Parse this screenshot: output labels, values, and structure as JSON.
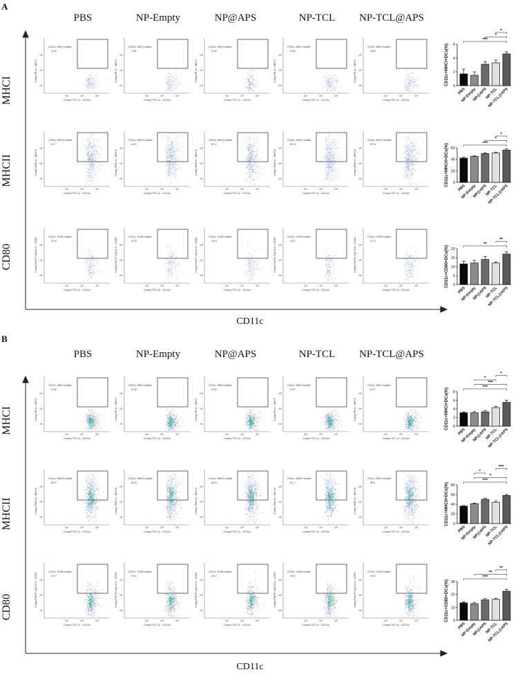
{
  "groups": [
    "PBS",
    "NP-Empty",
    "NP@APS",
    "NP-TCL",
    "NP-TCL@APS"
  ],
  "markers": [
    "MHCI",
    "MHCII",
    "CD80"
  ],
  "x_axis_title": "CD11c",
  "facs_labels": {
    "x_axis": "Comp-FITC-A :: CD11c",
    "y_axis": [
      "Comp-PE-A :: MHCI",
      "Comp-V500-A :: MHCII",
      "Comp-PerCP-Cy5-5-A :: CD80"
    ],
    "gate": [
      "CD11c, MHCI subset",
      "CD11c, MHCII subset",
      "CD11c, CD80 subset"
    ],
    "tick_labels": [
      "10³",
      "10⁴",
      "10⁵"
    ]
  },
  "panels": [
    {
      "letter": "A",
      "gate_values": [
        [
          "2.03",
          "1.82",
          "3.44",
          "3.62",
          "4.90"
        ],
        [
          "41.7",
          "44.5",
          "50.1",
          "52.5",
          "57.6"
        ],
        [
          "12.4",
          "12.8",
          "15.4",
          "14.2",
          "17.4"
        ]
      ],
      "colors": {
        "scatter": "#5b7bd6",
        "scatter_dense": "#2aa66a"
      }
    },
    {
      "letter": "B",
      "gate_values": [
        [
          "3.06",
          "3.09",
          "3.04",
          "4.07",
          "5.47"
        ],
        [
          "36.2",
          "42.8",
          "43.4",
          "51.7",
          "59.1"
        ],
        [
          "13.7",
          "13.1",
          "15.1",
          "15.4",
          "20.5"
        ]
      ],
      "colors": {
        "scatter": "#4d6fd0",
        "scatter_dense": "#21b36b"
      }
    }
  ],
  "chart_data": [
    {
      "type": "bar",
      "panel": "A",
      "ylabel": "CD11c+MHCI+DCs(%)",
      "categories": [
        "PBS",
        "NP-Empty",
        "NP@APS",
        "NP-TCL",
        "NP-TCL@APS"
      ],
      "values": [
        1.7,
        1.5,
        3.1,
        3.3,
        4.6
      ],
      "errors": [
        0.7,
        0.5,
        0.4,
        0.4,
        0.3
      ],
      "ylim": [
        0,
        6
      ],
      "yticks": [
        0,
        2,
        4,
        6
      ],
      "significance": [
        {
          "pair": [
            0,
            4
          ],
          "label": "***"
        },
        {
          "pair": [
            2,
            4
          ],
          "label": "*"
        },
        {
          "pair": [
            3,
            4
          ],
          "label": "*"
        }
      ]
    },
    {
      "type": "bar",
      "panel": "A",
      "ylabel": "CD11c+MHCII+DCs(%)",
      "categories": [
        "PBS",
        "NP-Empty",
        "NP@APS",
        "NP-TCL",
        "NP-TCL@APS"
      ],
      "values": [
        42,
        45,
        50,
        51,
        56
      ],
      "errors": [
        1.5,
        1.5,
        1.5,
        1.5,
        2
      ],
      "ylim": [
        0,
        60
      ],
      "yticks": [
        0,
        20,
        40,
        60
      ],
      "significance": [
        {
          "pair": [
            0,
            4
          ],
          "label": "***"
        },
        {
          "pair": [
            2,
            4
          ],
          "label": "*"
        },
        {
          "pair": [
            3,
            4
          ],
          "label": "*"
        }
      ]
    },
    {
      "type": "bar",
      "panel": "A",
      "ylabel": "CD11c+CD80+DCs(%)",
      "categories": [
        "PBS",
        "NP-Empty",
        "NP@APS",
        "NP-TCL",
        "NP-TCL@APS"
      ],
      "values": [
        11.5,
        12,
        14,
        12,
        17
      ],
      "errors": [
        1.5,
        1.5,
        1.5,
        0.6,
        1.2
      ],
      "ylim": [
        0,
        20
      ],
      "yticks": [
        0,
        5,
        10,
        15,
        20
      ],
      "significance": [
        {
          "pair": [
            0,
            4
          ],
          "label": "**"
        },
        {
          "pair": [
            3,
            4
          ],
          "label": "**"
        }
      ]
    },
    {
      "type": "bar",
      "panel": "B",
      "ylabel": "CD11c+MHCI+DCs(%)",
      "categories": [
        "PBS",
        "NP-Empty",
        "NP@APS",
        "NP-TCL",
        "NP-TCL@APS"
      ],
      "values": [
        3.1,
        3.1,
        3.3,
        4.3,
        5.5
      ],
      "errors": [
        0.2,
        0.3,
        0.3,
        0.3,
        0.5
      ],
      "ylim": [
        0,
        8
      ],
      "yticks": [
        0,
        2,
        4,
        6,
        8
      ],
      "significance": [
        {
          "pair": [
            0,
            4
          ],
          "label": "***"
        },
        {
          "pair": [
            1,
            4
          ],
          "label": "***"
        },
        {
          "pair": [
            1,
            3
          ],
          "label": "*"
        },
        {
          "pair": [
            3,
            4
          ],
          "label": "*"
        }
      ]
    },
    {
      "type": "bar",
      "panel": "B",
      "ylabel": "CD11c+MHCII+DCs(%)",
      "categories": [
        "PBS",
        "NP-Empty",
        "NP@APS",
        "NP-TCL",
        "NP-TCL@APS"
      ],
      "values": [
        36,
        41,
        50,
        44,
        58
      ],
      "errors": [
        1,
        1.5,
        2,
        3,
        2
      ],
      "ylim": [
        0,
        80
      ],
      "yticks": [
        0,
        20,
        40,
        60,
        80
      ],
      "significance": [
        {
          "pair": [
            0,
            4
          ],
          "label": "***"
        },
        {
          "pair": [
            1,
            4
          ],
          "label": "*"
        },
        {
          "pair": [
            1,
            2
          ],
          "label": "*"
        },
        {
          "pair": [
            3,
            4
          ],
          "label": "***"
        }
      ]
    },
    {
      "type": "bar",
      "panel": "B",
      "ylabel": "CD11c+CD80+DCs(%)",
      "categories": [
        "PBS",
        "NP-Empty",
        "NP@APS",
        "NP-TCL",
        "NP-TCL@APS"
      ],
      "values": [
        13.5,
        12.8,
        15.8,
        16.2,
        22.5
      ],
      "errors": [
        0.8,
        1,
        1,
        0.8,
        1.5
      ],
      "ylim": [
        0,
        30
      ],
      "yticks": [
        0,
        10,
        20,
        30
      ],
      "significance": [
        {
          "pair": [
            0,
            4
          ],
          "label": "***"
        },
        {
          "pair": [
            1,
            4
          ],
          "label": "**"
        },
        {
          "pair": [
            3,
            4
          ],
          "label": "**"
        }
      ]
    }
  ]
}
